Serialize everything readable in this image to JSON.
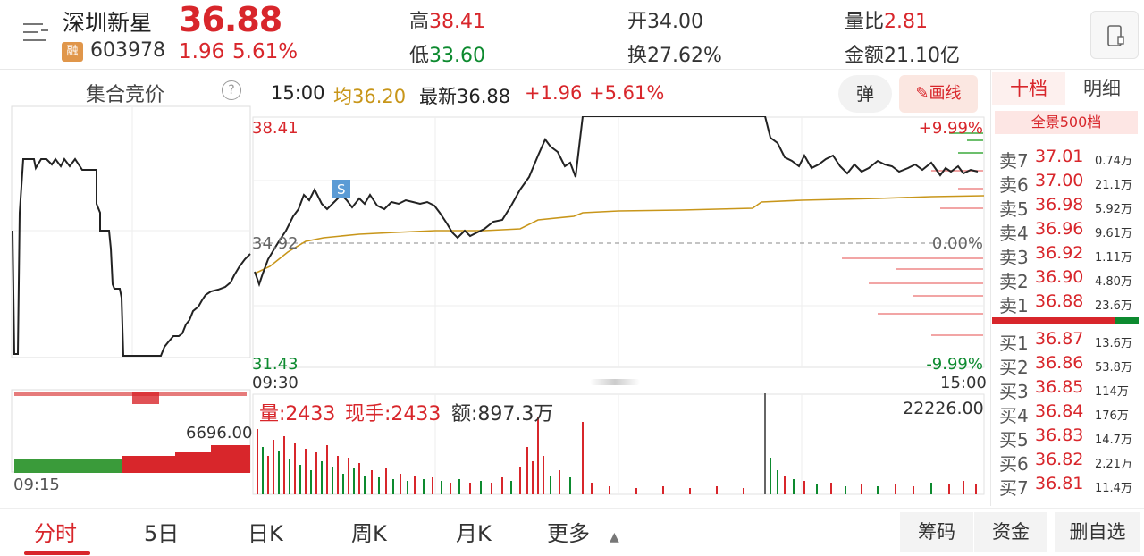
{
  "header": {
    "stock_name": "深圳新星",
    "price": "36.88",
    "margin_badge": "融",
    "code": "603978",
    "change": "1.96",
    "change_pct": "5.61%",
    "high_label": "高",
    "high": "38.41",
    "low_label": "低",
    "low": "33.60",
    "open_label": "开",
    "open": "34.00",
    "turnover_label": "换",
    "turnover": "27.62%",
    "vol_ratio_label": "量比",
    "vol_ratio": "2.81",
    "amount_label": "金额",
    "amount": "21.10亿"
  },
  "auction": {
    "title": "集合竞价",
    "help": "?",
    "time_label": "09:15",
    "vol_max": "6696.00"
  },
  "info_bar": {
    "time": "15:00",
    "avg": "均36.20",
    "latest": "最新36.88",
    "change": "+1.96",
    "change_pct": "+5.61%",
    "tan_button": "弹",
    "draw_button": "画线"
  },
  "price_axis": {
    "top": "38.41",
    "mid": "34.92",
    "bottom": "31.43",
    "pct_top": "+9.99%",
    "pct_mid": "0.00%",
    "pct_bottom": "-9.99%",
    "start": "09:30",
    "end": "15:00"
  },
  "marker": "S",
  "volume_bar": {
    "vol": "量:2433",
    "current": "现手:2433",
    "amount": "额:897.3万",
    "max": "22226.00"
  },
  "orderbook": {
    "tabs": [
      "十档",
      "明细"
    ],
    "full_level": "全景500档",
    "asks": [
      {
        "label": "卖7",
        "price": "37.01",
        "vol": "0.74万"
      },
      {
        "label": "卖6",
        "price": "37.00",
        "vol": "21.1万"
      },
      {
        "label": "卖5",
        "price": "36.98",
        "vol": "5.92万"
      },
      {
        "label": "卖4",
        "price": "36.96",
        "vol": "9.61万"
      },
      {
        "label": "卖3",
        "price": "36.92",
        "vol": "1.11万"
      },
      {
        "label": "卖2",
        "price": "36.90",
        "vol": "4.80万"
      },
      {
        "label": "卖1",
        "price": "36.88",
        "vol": "23.6万"
      }
    ],
    "bids": [
      {
        "label": "买1",
        "price": "36.87",
        "vol": "13.6万"
      },
      {
        "label": "买2",
        "price": "36.86",
        "vol": "53.8万"
      },
      {
        "label": "买3",
        "price": "36.85",
        "vol": "114万"
      },
      {
        "label": "买4",
        "price": "36.84",
        "vol": "176万"
      },
      {
        "label": "买5",
        "price": "36.83",
        "vol": "14.7万"
      },
      {
        "label": "买6",
        "price": "36.82",
        "vol": "2.21万"
      },
      {
        "label": "买7",
        "price": "36.81",
        "vol": "11.4万"
      }
    ]
  },
  "bottom_tabs": {
    "t1": "分时",
    "t2": "5日",
    "t3": "日K",
    "t4": "周K",
    "t5": "月K",
    "t6": "更多",
    "chips": "筹码",
    "funds": "资金",
    "del_fav": "删自选"
  },
  "colors": {
    "up": "#d8262b",
    "down": "#0d8a2f",
    "avg_line": "#c8961a"
  }
}
